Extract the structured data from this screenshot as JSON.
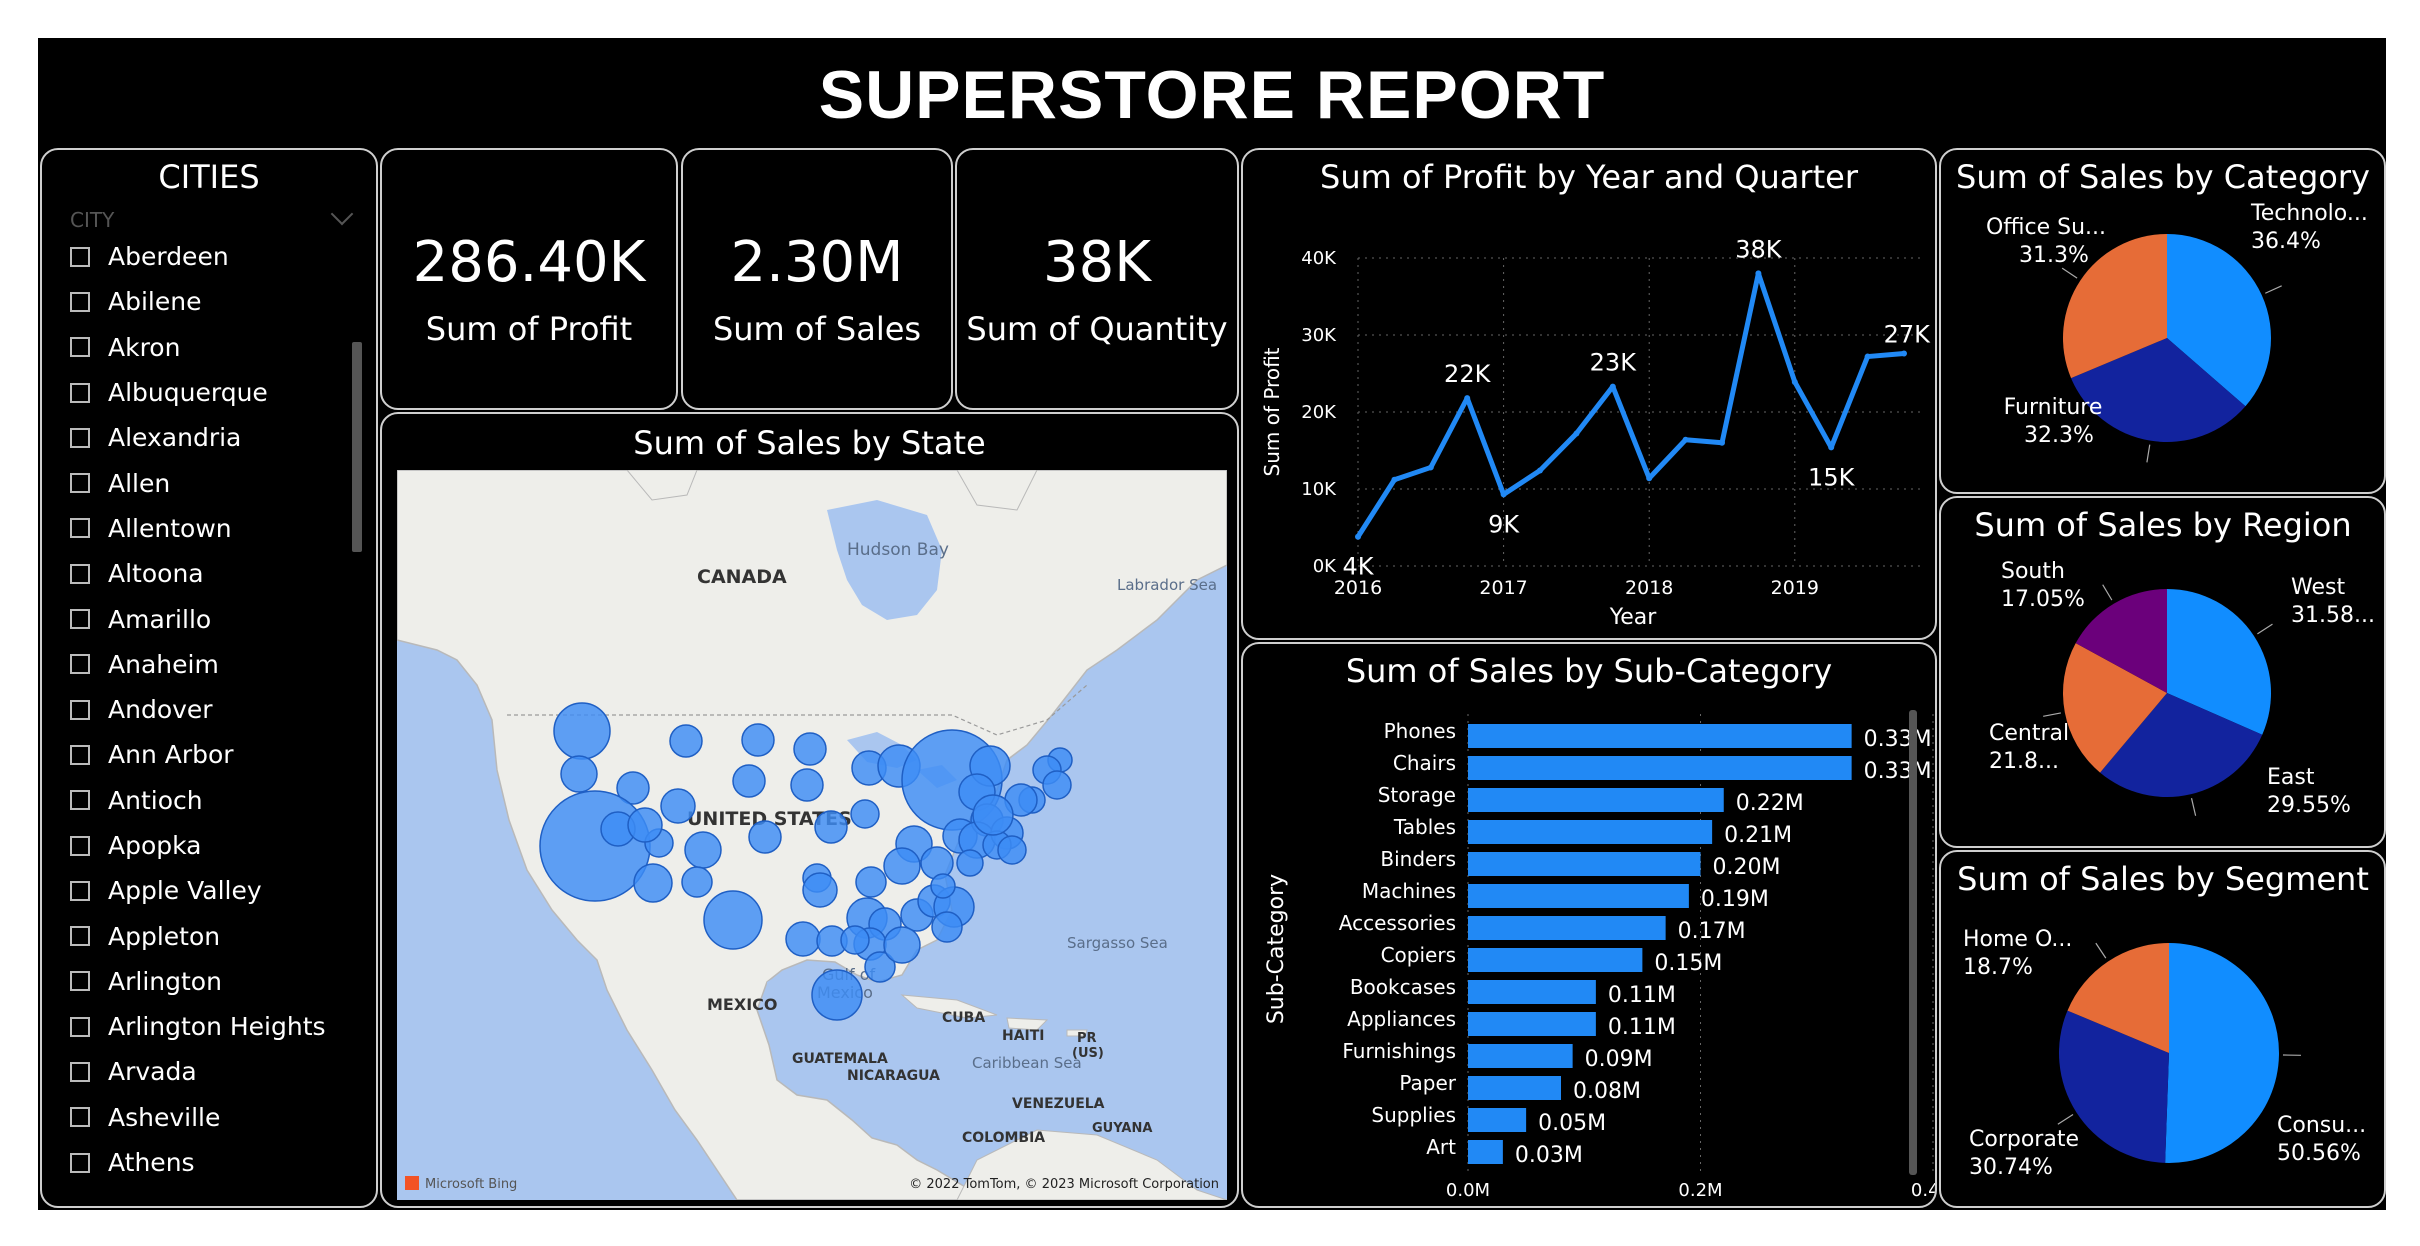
{
  "report_title": "SUPERSTORE REPORT",
  "cities": {
    "title": "CITIES",
    "field_label": "CITY",
    "items": [
      "Aberdeen",
      "Abilene",
      "Akron",
      "Albuquerque",
      "Alexandria",
      "Allen",
      "Allentown",
      "Altoona",
      "Amarillo",
      "Anaheim",
      "Andover",
      "Ann Arbor",
      "Antioch",
      "Apopka",
      "Apple Valley",
      "Appleton",
      "Arlington",
      "Arlington Heights",
      "Arvada",
      "Asheville",
      "Athens"
    ]
  },
  "kpis": [
    {
      "value": "286.40K",
      "label": "Sum of Profit"
    },
    {
      "value": "2.30M",
      "label": "Sum of Sales"
    },
    {
      "value": "38K",
      "label": "Sum of Quantity"
    }
  ],
  "map": {
    "title": "Sum of Sales by State",
    "labels": {
      "hudson_bay": "Hudson Bay",
      "canada": "CANADA",
      "labrador": "Labrador Sea",
      "united_states": "UNITED STATES",
      "sargasso": "Sargasso Sea",
      "gulf1": "Gulf of",
      "gulf2": "Mexico",
      "mexico": "MEXICO",
      "cuba": "CUBA",
      "haiti": "HAITI",
      "pr1": "PR",
      "pr2": "(US)",
      "guatemala": "GUATEMALA",
      "nicaragua": "NICARAGUA",
      "caribbean": "Caribbean Sea",
      "venezuela": "VENEZUELA",
      "guyana": "GUYANA",
      "colombia": "COLOMBIA",
      "bing": "Microsoft Bing",
      "copyright": "© 2022 TomTom, © 2023 Microsoft Corporation"
    },
    "colors": {
      "water": "#aac6ef",
      "land": "#eeeeea",
      "bubble": "#3d8cf5"
    }
  },
  "chart_data": [
    {
      "type": "line",
      "title": "Sum of Profit by Year and Quarter",
      "xlabel": "Year",
      "ylabel": "Sum of Profit",
      "x_ticks": [
        "2016",
        "2017",
        "2018",
        "2019"
      ],
      "y_ticks": [
        "0K",
        "10K",
        "20K",
        "30K",
        "40K"
      ],
      "ylim": [
        0,
        40000
      ],
      "quarters": [
        "2016 Q1",
        "2016 Q2",
        "2016 Q3",
        "2016 Q4",
        "2017 Q1",
        "2017 Q2",
        "2017 Q3",
        "2017 Q4",
        "2018 Q1",
        "2018 Q2",
        "2018 Q3",
        "2018 Q4",
        "2019 Q1",
        "2019 Q2",
        "2019 Q3",
        "2019 Q4"
      ],
      "values": [
        3800,
        11200,
        12800,
        21800,
        9300,
        12400,
        17200,
        23300,
        11400,
        16400,
        16000,
        38000,
        23900,
        15400,
        27200,
        27600
      ],
      "data_labels": [
        {
          "index": 0,
          "text": "4K",
          "pos": "below"
        },
        {
          "index": 3,
          "text": "22K",
          "pos": "above"
        },
        {
          "index": 4,
          "text": "9K",
          "pos": "below"
        },
        {
          "index": 7,
          "text": "23K",
          "pos": "above"
        },
        {
          "index": 11,
          "text": "38K",
          "pos": "above"
        },
        {
          "index": 13,
          "text": "15K",
          "pos": "below"
        },
        {
          "index": 14,
          "text": "27K",
          "pos": "above-right"
        }
      ],
      "color": "#2189f5",
      "grid": true
    },
    {
      "type": "bar",
      "orientation": "horizontal",
      "title": "Sum of Sales by Sub-Category",
      "xlabel": "Sum of Sales",
      "ylabel": "Sub-Category",
      "categories": [
        "Phones",
        "Chairs",
        "Storage",
        "Tables",
        "Binders",
        "Machines",
        "Accessories",
        "Copiers",
        "Bookcases",
        "Appliances",
        "Furnishings",
        "Paper",
        "Supplies",
        "Art"
      ],
      "values": [
        0.33,
        0.33,
        0.22,
        0.21,
        0.2,
        0.19,
        0.17,
        0.15,
        0.11,
        0.11,
        0.09,
        0.08,
        0.05,
        0.03
      ],
      "value_labels": [
        "0.33M",
        "0.33M",
        "0.22M",
        "0.21M",
        "0.20M",
        "0.19M",
        "0.17M",
        "0.15M",
        "0.11M",
        "0.11M",
        "0.09M",
        "0.08M",
        "0.05M",
        "0.03M"
      ],
      "x_ticks": [
        "0.0M",
        "0.2M",
        "0.4M"
      ],
      "xlim": [
        0,
        0.4
      ],
      "color": "#2189f5",
      "grid": true
    },
    {
      "type": "pie",
      "title": "Sum of Sales by Category",
      "slices": [
        {
          "label": "Technolo...",
          "pct_text": "36.4%",
          "value": 36.4,
          "color": "#118dff"
        },
        {
          "label": "Furniture",
          "pct_text": "32.3%",
          "value": 32.3,
          "color": "#12239e"
        },
        {
          "label": "Office Su...",
          "pct_text": "31.3%",
          "value": 31.3,
          "color": "#e66c37"
        }
      ]
    },
    {
      "type": "pie",
      "title": "Sum of Sales by Region",
      "slices": [
        {
          "label": "West",
          "pct_text": "31.58...",
          "value": 31.58,
          "color": "#118dff"
        },
        {
          "label": "East",
          "pct_text": "29.55%",
          "value": 29.55,
          "color": "#12239e"
        },
        {
          "label": "Central",
          "pct_text": "21.8...",
          "value": 21.82,
          "color": "#e66c37"
        },
        {
          "label": "South",
          "pct_text": "17.05%",
          "value": 17.05,
          "color": "#6b007b"
        }
      ]
    },
    {
      "type": "pie",
      "title": "Sum of Sales by Segment",
      "slices": [
        {
          "label": "Consu...",
          "pct_text": "50.56%",
          "value": 50.56,
          "color": "#118dff"
        },
        {
          "label": "Corporate",
          "pct_text": "30.74%",
          "value": 30.74,
          "color": "#12239e"
        },
        {
          "label": "Home O...",
          "pct_text": "18.7%",
          "value": 18.7,
          "color": "#e66c37"
        }
      ]
    }
  ]
}
